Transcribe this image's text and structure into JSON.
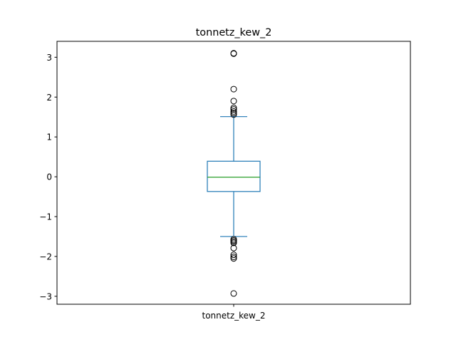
{
  "chart_data": {
    "type": "box",
    "title": "tonnetz_kew_2",
    "categories": [
      "tonnetz_kew_2"
    ],
    "ylim": [
      -3.2,
      3.4
    ],
    "yticks": [
      -3,
      -2,
      -1,
      0,
      1,
      2,
      3
    ],
    "ytick_labels": [
      "−3",
      "−2",
      "−1",
      "0",
      "1",
      "2",
      "3"
    ],
    "grid": false,
    "box": {
      "whisker_low": -1.5,
      "q1": -0.37,
      "median": -0.01,
      "q3": 0.39,
      "whisker_high": 1.51
    },
    "outliers": [
      3.1,
      3.09,
      2.2,
      1.9,
      1.73,
      1.69,
      1.64,
      1.6,
      1.56,
      -1.57,
      -1.6,
      -1.63,
      -1.66,
      -1.79,
      -1.96,
      -2.01,
      -2.05,
      -2.93
    ],
    "colors": {
      "box": "#1f77b4",
      "median": "#2ca02c",
      "outlier_edge": "#000000",
      "axes": "#000000"
    }
  }
}
